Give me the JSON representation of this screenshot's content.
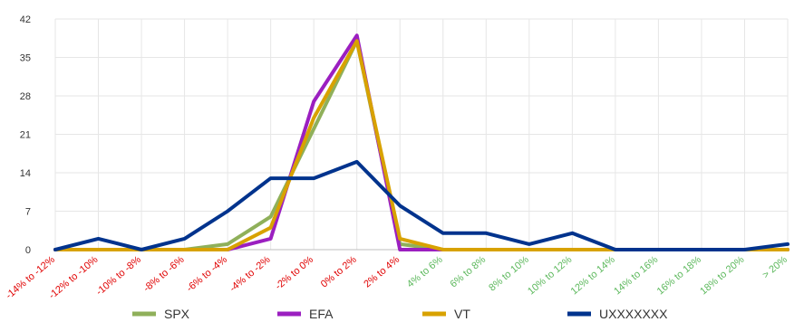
{
  "chart_data": {
    "type": "line",
    "categories": [
      "-14% to -12%",
      "-12% to -10%",
      "-10% to -8%",
      "-8% to -6%",
      "-6% to -4%",
      "-4% to -2%",
      "-2% to 0%",
      "0% to 2%",
      "2% to 4%",
      "4% to 6%",
      "6% to 8%",
      "8% to 10%",
      "10% to 12%",
      "12% to 14%",
      "14% to 16%",
      "16% to 18%",
      "18% to 20%",
      "> 20%"
    ],
    "category_colors": [
      "#e00000",
      "#e00000",
      "#e00000",
      "#e00000",
      "#e00000",
      "#e00000",
      "#e00000",
      "#e00000",
      "#e00000",
      "#5cb85c",
      "#5cb85c",
      "#5cb85c",
      "#5cb85c",
      "#5cb85c",
      "#5cb85c",
      "#5cb85c",
      "#5cb85c",
      "#5cb85c"
    ],
    "series": [
      {
        "name": "SPX",
        "color": "#8fb05a",
        "values": [
          0,
          0,
          0,
          0,
          1,
          6,
          22,
          38,
          1,
          0,
          0,
          0,
          0,
          0,
          0,
          0,
          0,
          0
        ]
      },
      {
        "name": "EFA",
        "color": "#9b1fc0",
        "values": [
          0,
          0,
          0,
          0,
          0,
          2,
          27,
          39,
          0,
          0,
          0,
          0,
          0,
          0,
          0,
          0,
          0,
          0
        ]
      },
      {
        "name": "VT",
        "color": "#d8a200",
        "values": [
          0,
          0,
          0,
          0,
          0,
          4,
          24,
          38,
          2,
          0,
          0,
          0,
          0,
          0,
          0,
          0,
          0,
          0
        ]
      },
      {
        "name": "UXXXXXXX",
        "color": "#00338d",
        "values": [
          0,
          2,
          0,
          2,
          7,
          13,
          13,
          16,
          8,
          3,
          3,
          1,
          3,
          0,
          0,
          0,
          0,
          1
        ]
      }
    ],
    "ylim": [
      0,
      42
    ],
    "yticks": [
      "0",
      "7",
      "14",
      "21",
      "28",
      "35",
      "42"
    ],
    "grid": true,
    "legend_position": "bottom"
  }
}
